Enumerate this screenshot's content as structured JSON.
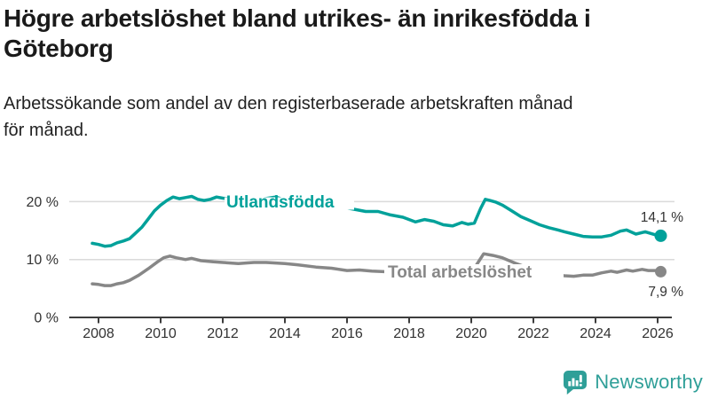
{
  "page": {
    "title": "Högre arbetslöshet bland utrikes- än inrikesfödda i Göteborg",
    "subtitle": "Arbetssökande som andel av den registerbaserade arbetskraften månad för månad."
  },
  "branding": {
    "name": "Newsworthy",
    "icon": "speech-bubble-with-bar-chart-and-exclamation",
    "color": "#2f9f98"
  },
  "colors": {
    "title_text": "#1a1a1a",
    "body_text": "#222222",
    "axis_text": "#333333",
    "axis_line": "#3d3d3d",
    "gridline": "#dadada",
    "value_label_text": "#333333",
    "foreign_born": "#00a19a",
    "total": "#878787"
  },
  "chart_data": {
    "type": "line",
    "unit": "%",
    "grid": "horizontal",
    "legend": "inline-labels",
    "x": {
      "label": "",
      "tick_years": [
        2008,
        2010,
        2012,
        2014,
        2016,
        2018,
        2020,
        2022,
        2024,
        2026
      ],
      "range": [
        2007.1,
        2026.6
      ]
    },
    "y": {
      "label": "",
      "ticks": [
        {
          "value": 0,
          "label": "0 %"
        },
        {
          "value": 10,
          "label": "10 %"
        },
        {
          "value": 20,
          "label": "20 %"
        }
      ],
      "range": [
        0,
        23
      ]
    },
    "series": [
      {
        "name": "Utlandsfödda",
        "color": "#00a19a",
        "end_label": "14,1 %",
        "end_value": 14.1,
        "points": [
          [
            2007.8,
            12.8
          ],
          [
            2008.0,
            12.6
          ],
          [
            2008.2,
            12.3
          ],
          [
            2008.4,
            12.4
          ],
          [
            2008.6,
            12.9
          ],
          [
            2008.8,
            13.2
          ],
          [
            2009.0,
            13.6
          ],
          [
            2009.2,
            14.6
          ],
          [
            2009.4,
            15.6
          ],
          [
            2009.6,
            17.0
          ],
          [
            2009.8,
            18.4
          ],
          [
            2010.0,
            19.4
          ],
          [
            2010.2,
            20.2
          ],
          [
            2010.4,
            20.8
          ],
          [
            2010.6,
            20.5
          ],
          [
            2010.8,
            20.7
          ],
          [
            2011.0,
            20.9
          ],
          [
            2011.2,
            20.4
          ],
          [
            2011.4,
            20.2
          ],
          [
            2011.6,
            20.4
          ],
          [
            2011.8,
            20.8
          ],
          [
            2012.0,
            20.6
          ],
          [
            2012.4,
            20.4
          ],
          [
            2012.8,
            20.3
          ],
          [
            2013.2,
            20.4
          ],
          [
            2013.7,
            20.8
          ],
          [
            2014.0,
            20.3
          ],
          [
            2014.5,
            19.9
          ],
          [
            2015.0,
            19.5
          ],
          [
            2015.5,
            19.1
          ],
          [
            2016.0,
            18.9
          ],
          [
            2016.3,
            18.6
          ],
          [
            2016.6,
            18.3
          ],
          [
            2017.0,
            18.3
          ],
          [
            2017.4,
            17.7
          ],
          [
            2017.8,
            17.3
          ],
          [
            2018.2,
            16.5
          ],
          [
            2018.5,
            16.9
          ],
          [
            2018.8,
            16.6
          ],
          [
            2019.1,
            16.0
          ],
          [
            2019.4,
            15.8
          ],
          [
            2019.7,
            16.4
          ],
          [
            2019.9,
            16.1
          ],
          [
            2020.1,
            16.3
          ],
          [
            2020.3,
            18.8
          ],
          [
            2020.45,
            20.4
          ],
          [
            2020.6,
            20.2
          ],
          [
            2020.8,
            19.9
          ],
          [
            2021.0,
            19.4
          ],
          [
            2021.3,
            18.4
          ],
          [
            2021.6,
            17.4
          ],
          [
            2021.9,
            16.7
          ],
          [
            2022.2,
            16.0
          ],
          [
            2022.5,
            15.5
          ],
          [
            2022.8,
            15.1
          ],
          [
            2023.0,
            14.8
          ],
          [
            2023.3,
            14.4
          ],
          [
            2023.6,
            14.0
          ],
          [
            2023.9,
            13.9
          ],
          [
            2024.2,
            13.9
          ],
          [
            2024.5,
            14.2
          ],
          [
            2024.8,
            14.9
          ],
          [
            2025.0,
            15.1
          ],
          [
            2025.3,
            14.4
          ],
          [
            2025.6,
            14.8
          ],
          [
            2025.9,
            14.3
          ],
          [
            2026.1,
            14.1
          ]
        ]
      },
      {
        "name": "Total arbetslöshet",
        "color": "#878787",
        "end_label": "7,9 %",
        "end_value": 7.9,
        "points": [
          [
            2007.8,
            5.8
          ],
          [
            2008.0,
            5.7
          ],
          [
            2008.2,
            5.5
          ],
          [
            2008.4,
            5.5
          ],
          [
            2008.6,
            5.8
          ],
          [
            2008.8,
            6.0
          ],
          [
            2009.0,
            6.4
          ],
          [
            2009.3,
            7.3
          ],
          [
            2009.6,
            8.4
          ],
          [
            2009.9,
            9.6
          ],
          [
            2010.1,
            10.3
          ],
          [
            2010.3,
            10.6
          ],
          [
            2010.5,
            10.3
          ],
          [
            2010.8,
            10.0
          ],
          [
            2011.0,
            10.2
          ],
          [
            2011.3,
            9.8
          ],
          [
            2011.7,
            9.6
          ],
          [
            2012.0,
            9.5
          ],
          [
            2012.5,
            9.3
          ],
          [
            2013.0,
            9.5
          ],
          [
            2013.4,
            9.5
          ],
          [
            2014.0,
            9.3
          ],
          [
            2014.4,
            9.1
          ],
          [
            2015.0,
            8.7
          ],
          [
            2015.5,
            8.5
          ],
          [
            2016.0,
            8.1
          ],
          [
            2016.4,
            8.2
          ],
          [
            2016.8,
            8.0
          ],
          [
            2017.2,
            7.9
          ],
          [
            2017.6,
            7.5
          ],
          [
            2018.0,
            7.1
          ],
          [
            2018.5,
            6.9
          ],
          [
            2019.0,
            7.0
          ],
          [
            2019.5,
            7.1
          ],
          [
            2019.9,
            7.7
          ],
          [
            2020.1,
            8.5
          ],
          [
            2020.4,
            11.0
          ],
          [
            2020.7,
            10.7
          ],
          [
            2021.0,
            10.3
          ],
          [
            2021.4,
            9.4
          ],
          [
            2021.8,
            8.6
          ],
          [
            2022.2,
            7.9
          ],
          [
            2022.5,
            7.6
          ],
          [
            2022.8,
            7.3
          ],
          [
            2023.0,
            7.2
          ],
          [
            2023.3,
            7.1
          ],
          [
            2023.6,
            7.3
          ],
          [
            2023.9,
            7.3
          ],
          [
            2024.2,
            7.7
          ],
          [
            2024.5,
            8.0
          ],
          [
            2024.7,
            7.8
          ],
          [
            2025.0,
            8.2
          ],
          [
            2025.2,
            8.0
          ],
          [
            2025.5,
            8.3
          ],
          [
            2025.7,
            8.1
          ],
          [
            2026.0,
            8.1
          ],
          [
            2026.1,
            7.9
          ]
        ]
      }
    ]
  }
}
